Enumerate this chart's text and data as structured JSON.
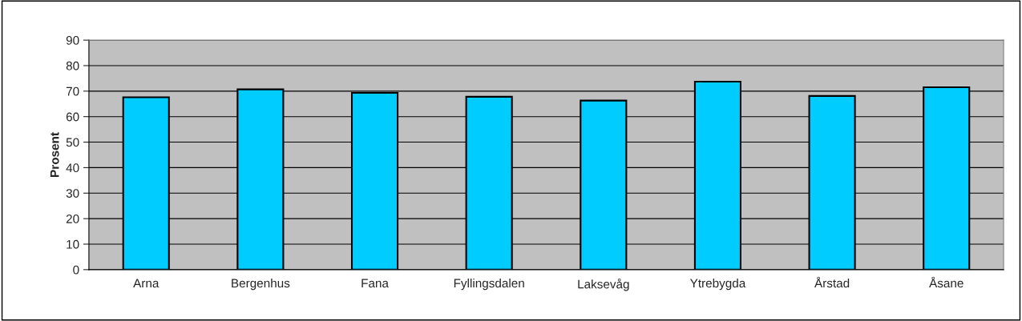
{
  "chart_data": {
    "type": "bar",
    "ylabel": "Prosent",
    "categories": [
      "Arna",
      "Bergenhus",
      "Fana",
      "Fyllingsdalen",
      "Laksevåg",
      "Ytrebygda",
      "Årstad",
      "Åsane"
    ],
    "values": [
      67.6,
      70.7,
      69.3,
      67.8,
      66.3,
      73.7,
      68.1,
      71.5
    ],
    "color": "#00ccff",
    "ylim": [
      0,
      90
    ],
    "yticks": [
      0,
      10,
      20,
      30,
      40,
      50,
      60,
      70,
      80,
      90
    ],
    "grid": "y",
    "legend": false
  }
}
